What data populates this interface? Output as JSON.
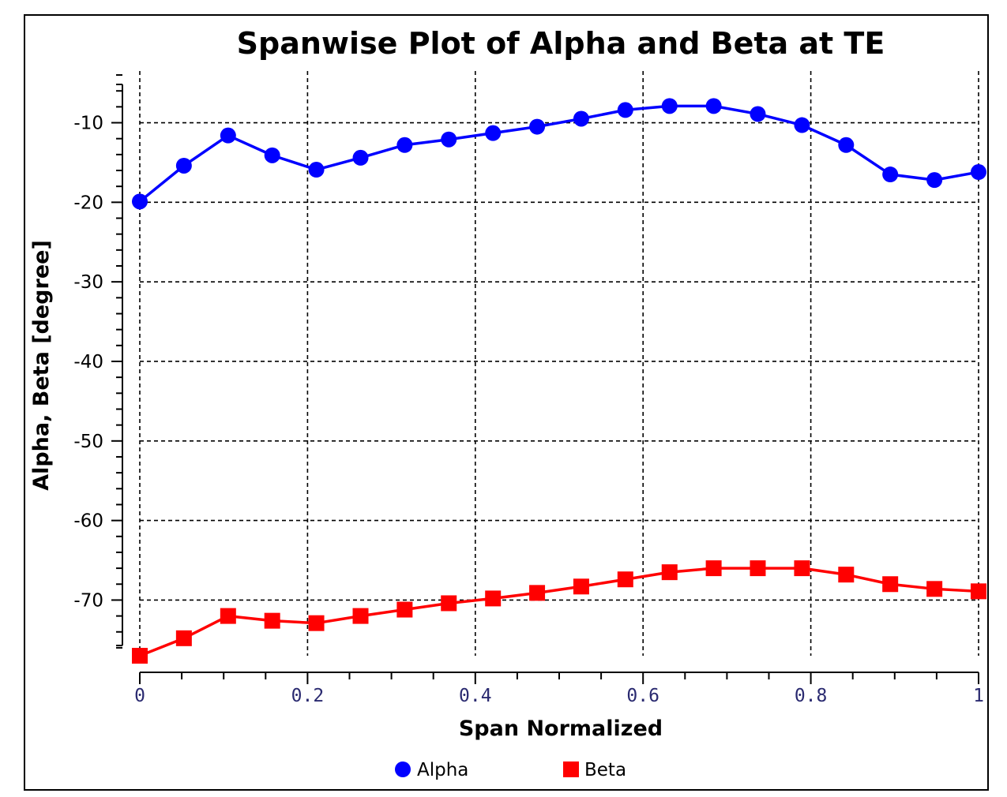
{
  "chart_data": {
    "type": "line",
    "title": "Spanwise Plot of Alpha and Beta at TE",
    "xlabel": "Span Normalized",
    "ylabel": "Alpha, Beta [degree]",
    "xlim": [
      0,
      1
    ],
    "ylim": [
      -77,
      -3.5
    ],
    "x_ticks": [
      0,
      0.2,
      0.4,
      0.6,
      0.8,
      1
    ],
    "x_tick_labels": [
      "0",
      "0.2",
      "0.4",
      "0.6",
      "0.8",
      "1"
    ],
    "y_ticks": [
      -10,
      -20,
      -30,
      -40,
      -50,
      -60,
      -70
    ],
    "y_tick_labels": [
      "-10",
      "-20",
      "-30",
      "-40",
      "-50",
      "-60",
      "-70"
    ],
    "grid": true,
    "legend_position": "bottom",
    "x": [
      0,
      0.0526,
      0.1053,
      0.1579,
      0.2105,
      0.2632,
      0.3158,
      0.3684,
      0.4211,
      0.4737,
      0.5263,
      0.5789,
      0.6316,
      0.6842,
      0.7368,
      0.7895,
      0.8421,
      0.8947,
      0.9474,
      1.0
    ],
    "series": [
      {
        "name": "Alpha",
        "color": "#0000ff",
        "marker": "circle",
        "values": [
          -19.9,
          -15.4,
          -11.6,
          -14.1,
          -15.9,
          -14.4,
          -12.8,
          -12.1,
          -11.3,
          -10.5,
          -9.5,
          -8.4,
          -7.9,
          -7.9,
          -8.9,
          -10.3,
          -12.8,
          -16.5,
          -17.2,
          -16.2
        ]
      },
      {
        "name": "Beta",
        "color": "#ff0000",
        "marker": "square",
        "values": [
          -77.0,
          -74.8,
          -72.0,
          -72.6,
          -72.9,
          -72.0,
          -71.2,
          -70.4,
          -69.8,
          -69.1,
          -68.3,
          -67.4,
          -66.5,
          -66.0,
          -66.0,
          -66.0,
          -66.8,
          -68.0,
          -68.6,
          -68.9
        ]
      }
    ]
  }
}
